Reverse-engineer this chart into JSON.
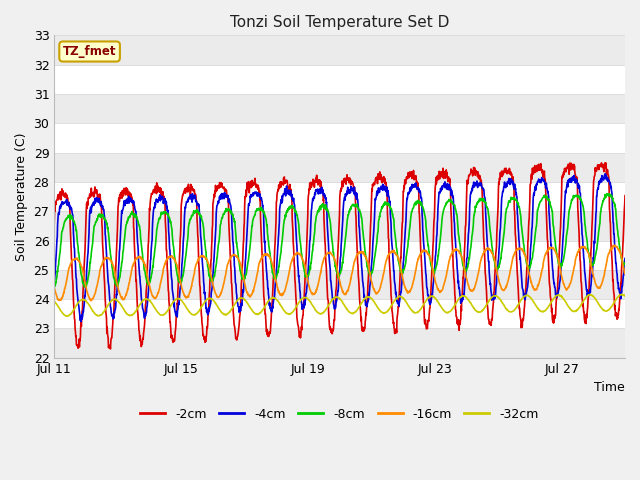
{
  "title": "Tonzi Soil Temperature Set D",
  "xlabel": "Time",
  "ylabel": "Soil Temperature (C)",
  "ylim": [
    22.0,
    33.0
  ],
  "yticks": [
    22.0,
    23.0,
    24.0,
    25.0,
    26.0,
    27.0,
    28.0,
    29.0,
    30.0,
    31.0,
    32.0,
    33.0
  ],
  "xtick_labels": [
    "Jul 11",
    "Jul 15",
    "Jul 19",
    "Jul 23",
    "Jul 27"
  ],
  "annotation_text": "TZ_fmet",
  "annotation_color": "#8B0000",
  "annotation_bg": "#FFFFCC",
  "annotation_border": "#C8A000",
  "fig_bg": "#F0F0F0",
  "plot_bg": "#FFFFFF",
  "grid_color": "#DDDDDD",
  "series": [
    {
      "label": "-2cm",
      "color": "#DD0000",
      "lw": 1.2
    },
    {
      "label": "-4cm",
      "color": "#0000DD",
      "lw": 1.2
    },
    {
      "label": "-8cm",
      "color": "#00CC00",
      "lw": 1.2
    },
    {
      "label": "-16cm",
      "color": "#FF8C00",
      "lw": 1.2
    },
    {
      "label": "-32cm",
      "color": "#CCCC00",
      "lw": 1.2
    }
  ],
  "n_days": 18,
  "samples_per_day": 96,
  "depth_params": [
    {
      "base": 26.5,
      "amp": 4.2,
      "lag": 0.0,
      "trend": 0.06,
      "sharpness": 4.0
    },
    {
      "base": 26.3,
      "amp": 3.0,
      "lag": 0.1,
      "trend": 0.05,
      "sharpness": 3.0
    },
    {
      "base": 26.0,
      "amp": 1.6,
      "lag": 0.22,
      "trend": 0.045,
      "sharpness": 2.0
    },
    {
      "base": 24.8,
      "amp": 0.85,
      "lag": 0.42,
      "trend": 0.025,
      "sharpness": 1.5
    },
    {
      "base": 23.7,
      "amp": 0.28,
      "lag": 0.65,
      "trend": 0.01,
      "sharpness": 1.0
    }
  ]
}
